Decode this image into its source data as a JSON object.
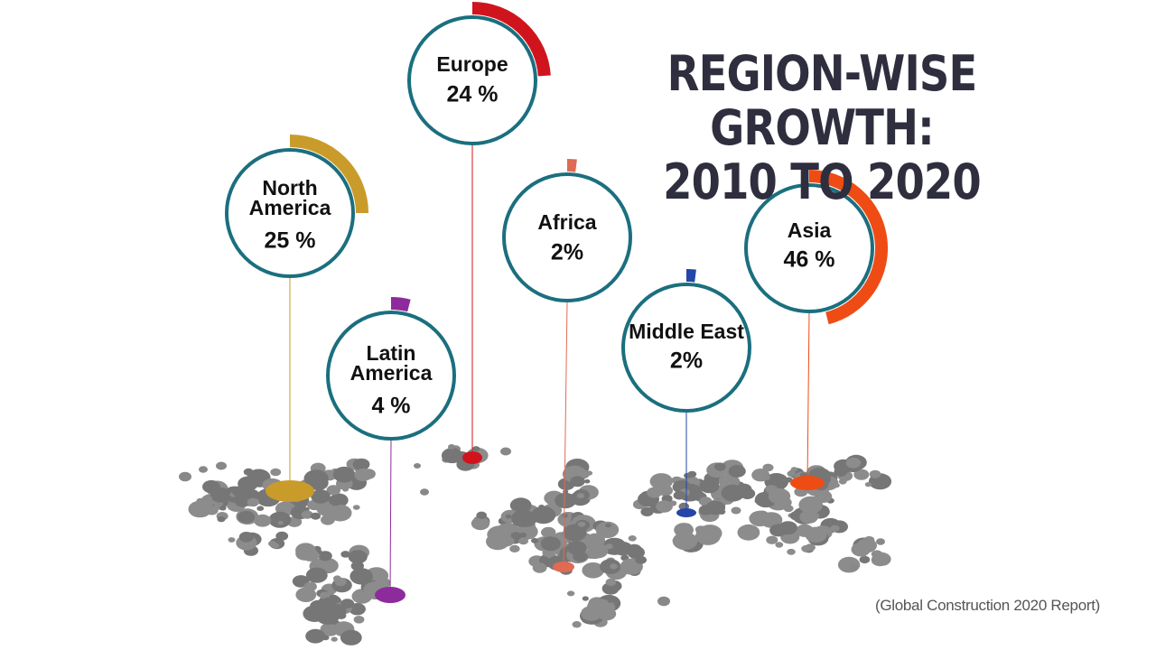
{
  "title": {
    "line1": "REGION-WISE GROWTH:",
    "line2": "2010 TO 2020"
  },
  "source": "(Global Construction 2020 Report)",
  "chart_data": {
    "type": "pie",
    "title": "REGION-WISE GROWTH: 2010 TO 2020",
    "regions": [
      {
        "name": "Europe",
        "label_lines": [
          "Europe"
        ],
        "value": 24,
        "value_label": "24 %",
        "color": "#d0141e"
      },
      {
        "name": "North America",
        "label_lines": [
          "North",
          "America"
        ],
        "value": 25,
        "value_label": "25 %",
        "color": "#c99b2a"
      },
      {
        "name": "Latin America",
        "label_lines": [
          "Latin",
          "America"
        ],
        "value": 4,
        "value_label": "4 %",
        "color": "#8e2b9c"
      },
      {
        "name": "Africa",
        "label_lines": [
          "Africa"
        ],
        "value": 2,
        "value_label": "2%",
        "color": "#e06a54"
      },
      {
        "name": "Middle East",
        "label_lines": [
          "Middle East"
        ],
        "value": 2,
        "value_label": "2%",
        "color": "#2446a8"
      },
      {
        "name": "Asia",
        "label_lines": [
          "Asia"
        ],
        "value": 46,
        "value_label": "46 %",
        "color": "#ee4c14"
      }
    ]
  }
}
